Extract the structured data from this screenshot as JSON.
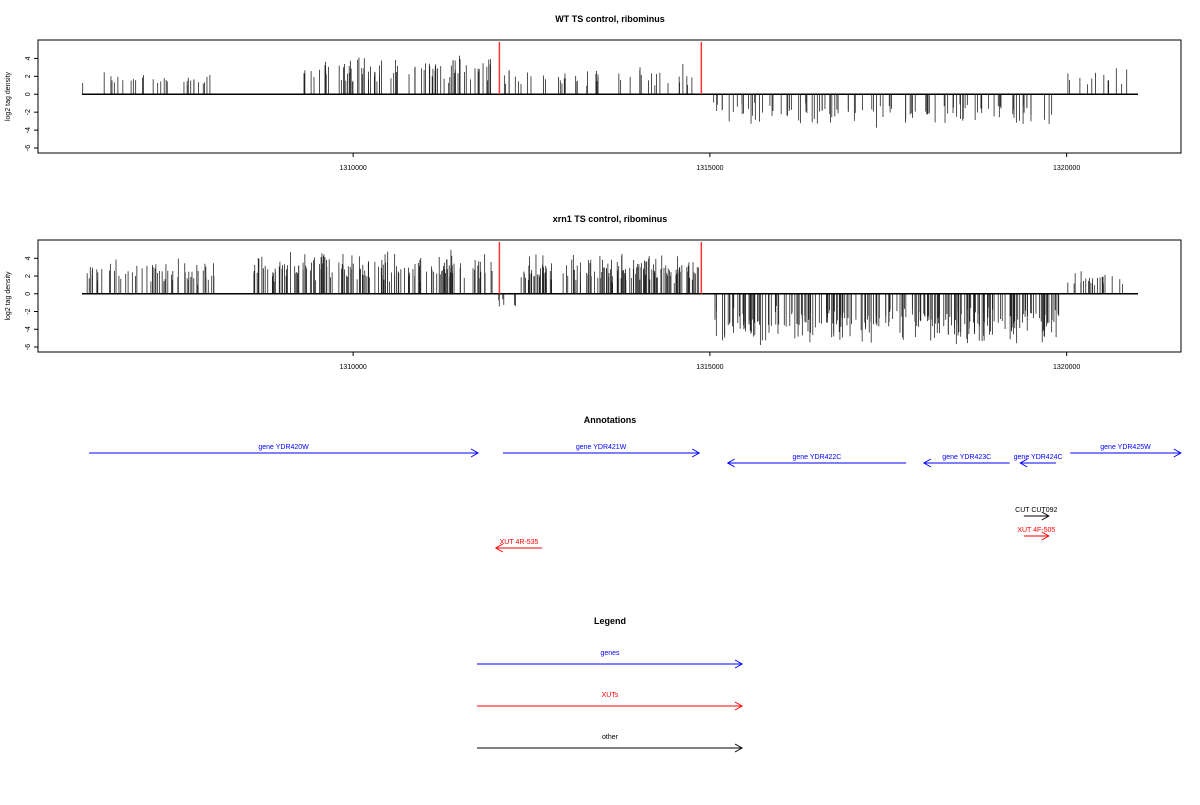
{
  "chart_data": [
    {
      "type": "bar",
      "title": "WT TS control, ribominus",
      "ylabel": "log2 tag density",
      "xlabel": "",
      "xlim": [
        1306000,
        1321600
      ],
      "ylim": [
        -6,
        5.5
      ],
      "y_ticks": [
        -6,
        -4,
        -2,
        0,
        2,
        4
      ],
      "x_ticks": [
        1310000,
        1315000,
        1320000
      ],
      "x_tick_labels": [
        "1310000",
        "1315000",
        "1320000"
      ],
      "marker_positions": [
        1312050,
        1314880
      ],
      "regions": [
        {
          "start": 1306200,
          "end": 1308000,
          "sign": 1,
          "amp_max": 3.0,
          "count": 30
        },
        {
          "start": 1309300,
          "end": 1311950,
          "sign": 1,
          "amp_max": 4.8,
          "count": 90
        },
        {
          "start": 1312100,
          "end": 1314850,
          "sign": 1,
          "amp_max": 3.5,
          "count": 45
        },
        {
          "start": 1315050,
          "end": 1319800,
          "sign": -1,
          "amp_max": 3.8,
          "count": 110
        },
        {
          "start": 1320000,
          "end": 1320900,
          "sign": 1,
          "amp_max": 3.2,
          "count": 12
        }
      ]
    },
    {
      "type": "bar",
      "title": "xrn1 TS control, ribominus",
      "ylabel": "log2 tag density",
      "xlabel": "",
      "xlim": [
        1306000,
        1321600
      ],
      "ylim": [
        -6,
        5.5
      ],
      "y_ticks": [
        -6,
        -4,
        -2,
        0,
        2,
        4
      ],
      "x_ticks": [
        1310000,
        1315000,
        1320000
      ],
      "x_tick_labels": [
        "1310000",
        "1315000",
        "1320000"
      ],
      "marker_positions": [
        1312050,
        1314880
      ],
      "regions": [
        {
          "start": 1306200,
          "end": 1308100,
          "sign": 1,
          "amp_max": 4.3,
          "count": 60
        },
        {
          "start": 1308600,
          "end": 1311950,
          "sign": 1,
          "amp_max": 5.2,
          "count": 160
        },
        {
          "start": 1312000,
          "end": 1312300,
          "sign": -1,
          "amp_max": 2.2,
          "count": 6
        },
        {
          "start": 1312350,
          "end": 1314850,
          "sign": 1,
          "amp_max": 4.8,
          "count": 150
        },
        {
          "start": 1315050,
          "end": 1319900,
          "sign": -1,
          "amp_max": 5.9,
          "count": 260
        },
        {
          "start": 1320000,
          "end": 1320800,
          "sign": 1,
          "amp_max": 2.7,
          "count": 25
        }
      ]
    }
  ],
  "annotations": {
    "title": "Annotations",
    "items": [
      {
        "label": "gene YDR420W",
        "color": "#0000ff",
        "x1": 1306300,
        "x2": 1311750,
        "dir": "right",
        "row": 0
      },
      {
        "label": "gene YDR421W",
        "color": "#0000ff",
        "x1": 1312100,
        "x2": 1314850,
        "dir": "right",
        "row": 0
      },
      {
        "label": "gene YDR422C",
        "color": "#0000ff",
        "x1": 1315250,
        "x2": 1317750,
        "dir": "left",
        "row": 1
      },
      {
        "label": "gene YDR423C",
        "color": "#0000ff",
        "x1": 1318000,
        "x2": 1319200,
        "dir": "left",
        "row": 1
      },
      {
        "label": "gene YDR424C",
        "color": "#0000ff",
        "x1": 1319350,
        "x2": 1319850,
        "dir": "left",
        "row": 1
      },
      {
        "label": "gene YDR425W",
        "color": "#0000ff",
        "x1": 1320050,
        "x2": 1321600,
        "dir": "right",
        "row": 0
      },
      {
        "label": "CUT CUT092",
        "color": "#000000",
        "x1": 1319400,
        "x2": 1319750,
        "dir": "right",
        "row": 2
      },
      {
        "label": "XUT 4F-505",
        "color": "#ff0000",
        "x1": 1319400,
        "x2": 1319750,
        "dir": "right",
        "row": 3
      },
      {
        "label": "XUT 4R-535",
        "color": "#ff0000",
        "x1": 1312000,
        "x2": 1312650,
        "dir": "left",
        "row": 4
      }
    ]
  },
  "legend": {
    "title": "Legend",
    "items": [
      {
        "label": "genes",
        "color": "#0000ff"
      },
      {
        "label": "XUTs",
        "color": "#ff0000"
      },
      {
        "label": "other",
        "color": "#000000"
      }
    ]
  }
}
